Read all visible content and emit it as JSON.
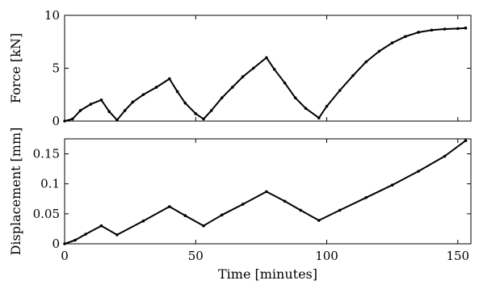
{
  "chart_data": [
    {
      "type": "line",
      "xlabel": "",
      "ylabel": "Force [kN]",
      "xlim": [
        0,
        155
      ],
      "ylim": [
        0,
        10
      ],
      "xticks": [
        0,
        50,
        100,
        150
      ],
      "xtick_labels_shown": false,
      "yticks": [
        0,
        5,
        10
      ],
      "ytick_labels": [
        "0",
        "5",
        "10"
      ],
      "grid": false,
      "legend": "none",
      "series": [
        {
          "color": "#000000",
          "x": [
            0,
            3,
            6,
            10,
            14,
            17,
            20,
            23,
            26,
            30,
            35,
            40,
            43,
            46,
            50,
            53,
            56,
            60,
            64,
            68,
            72,
            77,
            80,
            84,
            88,
            92,
            97,
            100,
            105,
            110,
            115,
            120,
            125,
            130,
            135,
            140,
            145,
            150,
            153
          ],
          "y": [
            0,
            0.2,
            1.0,
            1.6,
            2.0,
            0.9,
            0.1,
            1.0,
            1.8,
            2.5,
            3.2,
            4.0,
            2.8,
            1.7,
            0.7,
            0.2,
            1.0,
            2.2,
            3.2,
            4.2,
            5.0,
            6.0,
            4.9,
            3.6,
            2.2,
            1.2,
            0.3,
            1.4,
            2.9,
            4.3,
            5.6,
            6.6,
            7.4,
            8.0,
            8.4,
            8.6,
            8.7,
            8.75,
            8.8
          ]
        }
      ]
    },
    {
      "type": "line",
      "xlabel": "Time [minutes]",
      "ylabel": "Displacement [mm]",
      "xlim": [
        0,
        155
      ],
      "ylim": [
        0,
        0.175
      ],
      "xticks": [
        0,
        50,
        100,
        150
      ],
      "xtick_labels": [
        "0",
        "50",
        "100",
        "150"
      ],
      "yticks": [
        0,
        0.05,
        0.1,
        0.15
      ],
      "ytick_labels": [
        "0",
        "0.05",
        "0.1",
        "0.15"
      ],
      "grid": false,
      "legend": "none",
      "series": [
        {
          "color": "#000000",
          "x": [
            0,
            4,
            8,
            14,
            20,
            30,
            40,
            46,
            53,
            60,
            68,
            77,
            84,
            90,
            97,
            105,
            115,
            125,
            135,
            145,
            153
          ],
          "y": [
            0,
            0.006,
            0.016,
            0.03,
            0.015,
            0.038,
            0.062,
            0.047,
            0.03,
            0.048,
            0.066,
            0.087,
            0.071,
            0.056,
            0.039,
            0.056,
            0.077,
            0.098,
            0.121,
            0.146,
            0.172
          ]
        }
      ]
    }
  ]
}
